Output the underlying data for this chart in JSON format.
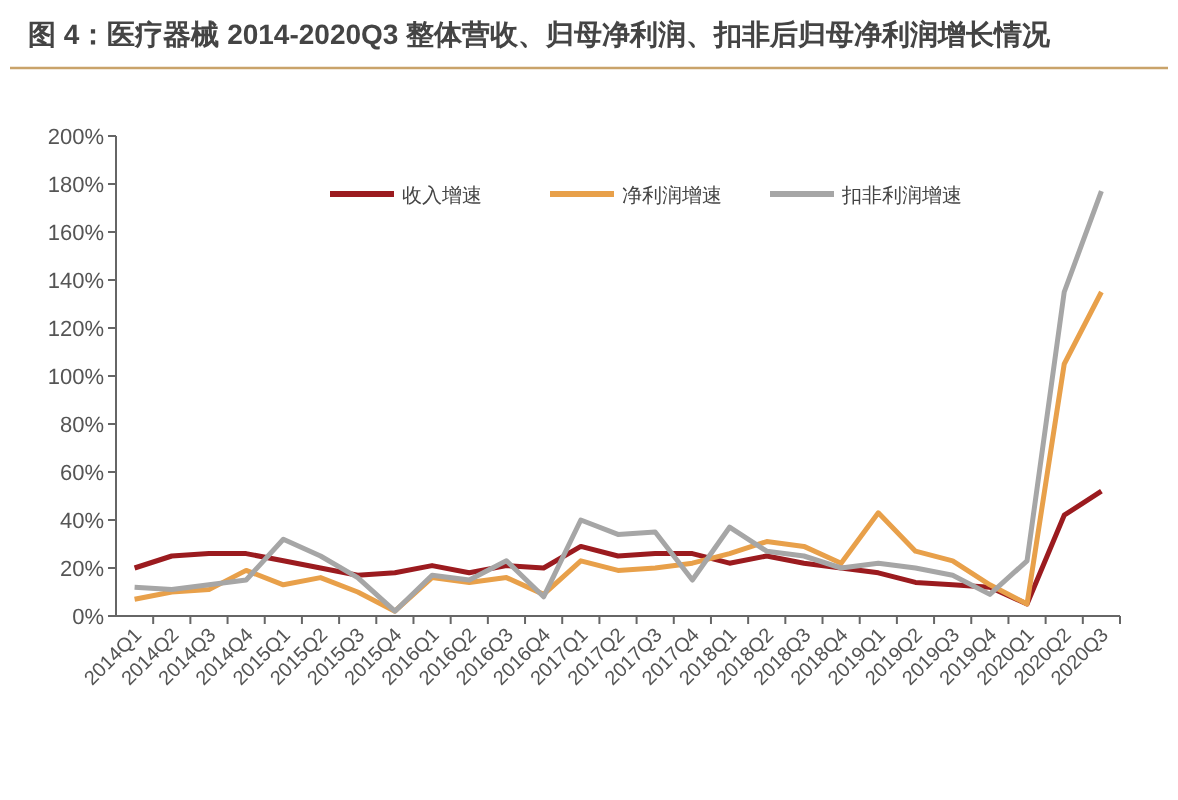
{
  "chart_data": {
    "type": "line",
    "title": "图 4：医疗器械 2014-2020Q3 整体营收、归母净利润、扣非后归母净利润增长情况",
    "categories": [
      "2014Q1",
      "2014Q2",
      "2014Q3",
      "2014Q4",
      "2015Q1",
      "2015Q2",
      "2015Q3",
      "2015Q4",
      "2016Q1",
      "2016Q2",
      "2016Q3",
      "2016Q4",
      "2017Q1",
      "2017Q2",
      "2017Q3",
      "2017Q4",
      "2018Q1",
      "2018Q2",
      "2018Q3",
      "2018Q4",
      "2019Q1",
      "2019Q2",
      "2019Q3",
      "2019Q4",
      "2020Q1",
      "2020Q2",
      "2020Q3"
    ],
    "series": [
      {
        "name": "收入增速",
        "color": "#9b1b1f",
        "values": [
          20,
          25,
          26,
          26,
          23,
          20,
          17,
          18,
          21,
          18,
          21,
          20,
          29,
          25,
          26,
          26,
          22,
          25,
          22,
          20,
          18,
          14,
          13,
          12,
          5,
          42,
          52
        ]
      },
      {
        "name": "净利润增速",
        "color": "#e8a04a",
        "values": [
          7,
          10,
          11,
          19,
          13,
          16,
          10,
          2,
          16,
          14,
          16,
          9,
          23,
          19,
          20,
          22,
          26,
          31,
          29,
          22,
          43,
          27,
          23,
          13,
          5,
          105,
          135
        ]
      },
      {
        "name": "扣非利润增速",
        "color": "#a6a6a6",
        "values": [
          12,
          11,
          13,
          15,
          32,
          25,
          16,
          2,
          17,
          15,
          23,
          8,
          40,
          34,
          35,
          15,
          37,
          27,
          25,
          20,
          22,
          20,
          17,
          9,
          23,
          135,
          177
        ]
      }
    ],
    "ylim": [
      0,
      200
    ],
    "yticks": [
      {
        "value": 0,
        "label": "0%"
      },
      {
        "value": 20,
        "label": "20%"
      },
      {
        "value": 40,
        "label": "40%"
      },
      {
        "value": 60,
        "label": "60%"
      },
      {
        "value": 80,
        "label": "80%"
      },
      {
        "value": 100,
        "label": "100%"
      },
      {
        "value": 120,
        "label": "120%"
      },
      {
        "value": 140,
        "label": "140%"
      },
      {
        "value": 160,
        "label": "160%"
      },
      {
        "value": 180,
        "label": "180%"
      },
      {
        "value": 200,
        "label": "200%"
      }
    ],
    "grid": false,
    "legend": "top",
    "marker": "none",
    "line_style": "solid"
  }
}
